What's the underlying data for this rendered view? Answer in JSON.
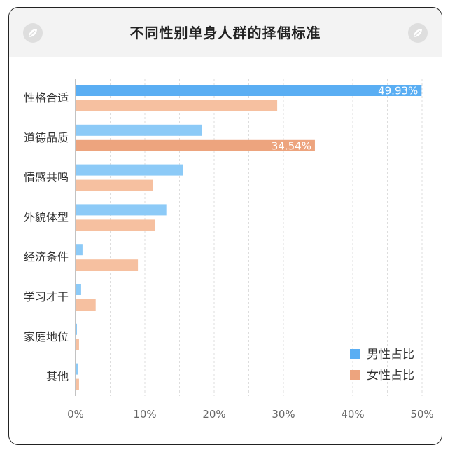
{
  "chart_data": {
    "type": "bar",
    "orientation": "horizontal",
    "title": "不同性别单身人群的择偶标准",
    "categories": [
      "性格合适",
      "道德品质",
      "情感共鸣",
      "外貌体型",
      "经济条件",
      "学习才干",
      "家庭地位",
      "其他"
    ],
    "series": [
      {
        "name": "男性占比",
        "values": [
          49.93,
          18.2,
          15.5,
          13.1,
          1.0,
          0.8,
          0.2,
          0.4
        ],
        "color": "#8ccaf7",
        "highlight_color": "#5aaef3"
      },
      {
        "name": "女性占比",
        "values": [
          29.1,
          34.54,
          11.2,
          11.5,
          9.0,
          2.9,
          0.5,
          0.5
        ],
        "color": "#f6c0a0",
        "highlight_color": "#eda47e"
      }
    ],
    "data_labels": [
      {
        "series": 0,
        "index": 0,
        "text": "49.93%"
      },
      {
        "series": 1,
        "index": 1,
        "text": "34.54%"
      }
    ],
    "xlim": [
      0,
      50
    ],
    "xticks": [
      "0%",
      "10%",
      "20%",
      "30%",
      "40%",
      "50%"
    ],
    "grid": "vertical dashed",
    "legend_position": "bottom-right"
  },
  "colors": {
    "axis": "#999999",
    "grid": "#dddddd",
    "text": "#333333",
    "tick": "#666666"
  },
  "icons": {
    "header_left": "leaf-icon",
    "header_right": "leaf-icon"
  }
}
